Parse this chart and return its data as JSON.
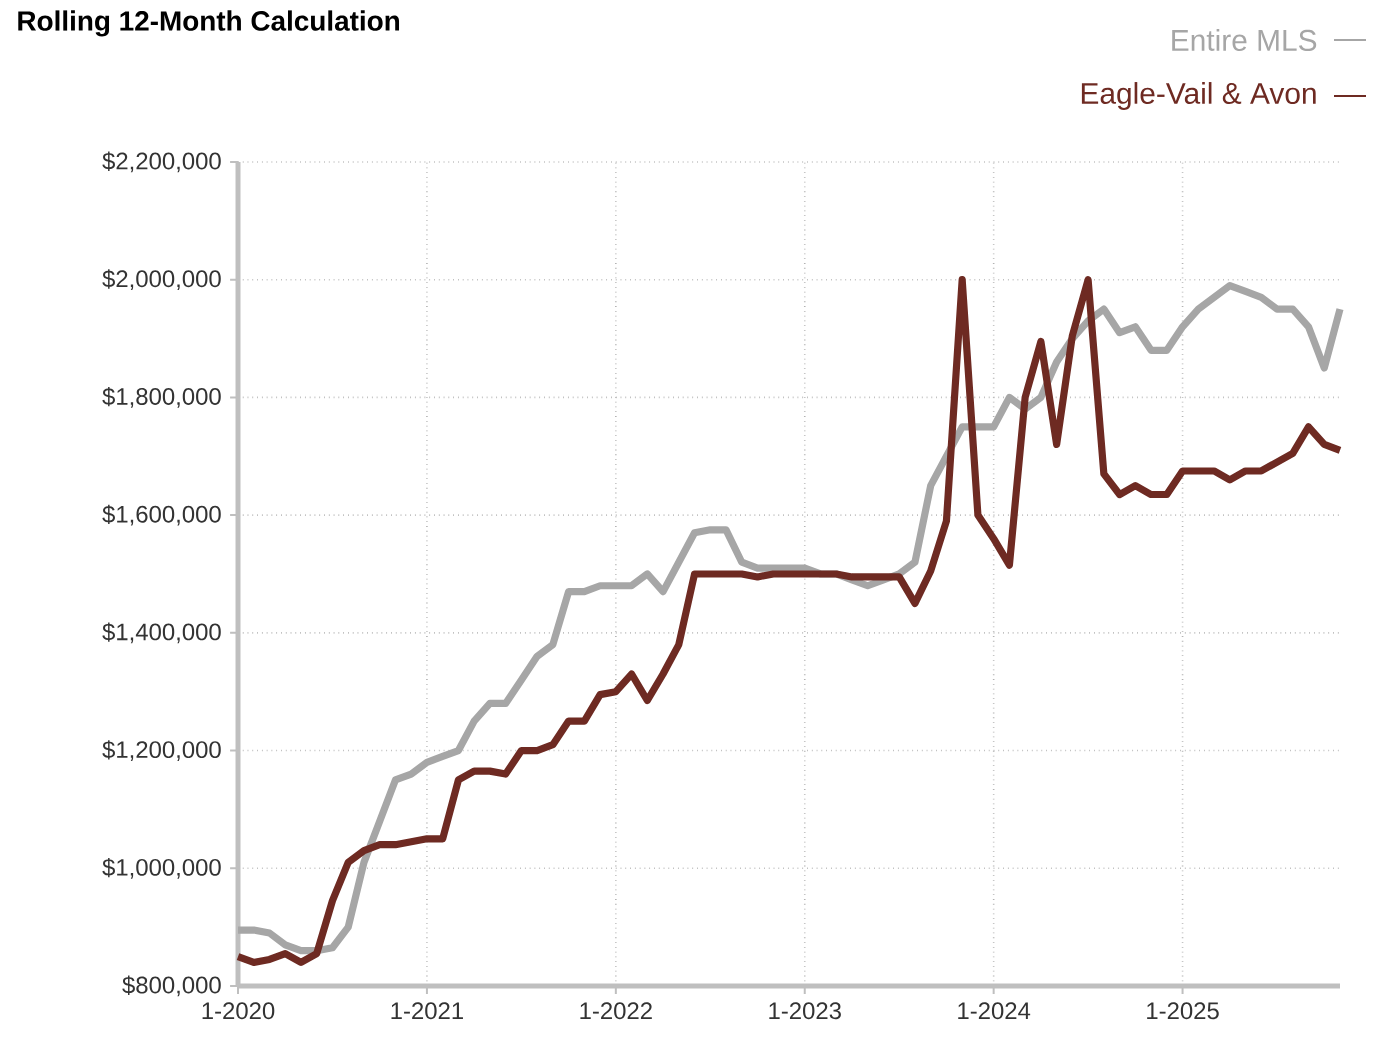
{
  "chart_data": {
    "type": "line",
    "title": "Rolling 12-Month Calculation",
    "x": [
      "2020-01",
      "2020-02",
      "2020-03",
      "2020-04",
      "2020-05",
      "2020-06",
      "2020-07",
      "2020-08",
      "2020-09",
      "2020-10",
      "2020-11",
      "2020-12",
      "2021-01",
      "2021-02",
      "2021-03",
      "2021-04",
      "2021-05",
      "2021-06",
      "2021-07",
      "2021-08",
      "2021-09",
      "2021-10",
      "2021-11",
      "2021-12",
      "2022-01",
      "2022-02",
      "2022-03",
      "2022-04",
      "2022-05",
      "2022-06",
      "2022-07",
      "2022-08",
      "2022-09",
      "2022-10",
      "2022-11",
      "2022-12",
      "2023-01",
      "2023-02",
      "2023-03",
      "2023-04",
      "2023-05",
      "2023-06",
      "2023-07",
      "2023-08",
      "2023-09",
      "2023-10",
      "2023-11",
      "2023-12",
      "2024-01",
      "2024-02",
      "2024-03",
      "2024-04",
      "2024-05",
      "2024-06",
      "2024-07",
      "2024-08",
      "2024-09",
      "2024-10",
      "2024-11",
      "2024-12",
      "2025-01",
      "2025-02",
      "2025-03",
      "2025-04",
      "2025-05",
      "2025-06",
      "2025-07",
      "2025-08",
      "2025-09",
      "2025-10",
      "2025-11"
    ],
    "series": [
      {
        "name": "Entire MLS",
        "color": "#a6a6a6",
        "values": [
          895000,
          895000,
          890000,
          870000,
          860000,
          860000,
          865000,
          900000,
          1010000,
          1080000,
          1150000,
          1160000,
          1180000,
          1190000,
          1200000,
          1250000,
          1280000,
          1280000,
          1320000,
          1360000,
          1380000,
          1470000,
          1470000,
          1480000,
          1480000,
          1480000,
          1500000,
          1470000,
          1520000,
          1570000,
          1575000,
          1575000,
          1520000,
          1510000,
          1510000,
          1510000,
          1510000,
          1500000,
          1500000,
          1490000,
          1480000,
          1490000,
          1500000,
          1520000,
          1650000,
          1700000,
          1750000,
          1750000,
          1750000,
          1800000,
          1780000,
          1800000,
          1860000,
          1900000,
          1930000,
          1950000,
          1910000,
          1920000,
          1880000,
          1880000,
          1920000,
          1950000,
          1970000,
          1990000,
          1980000,
          1970000,
          1950000,
          1950000,
          1920000,
          1850000,
          1950000
        ]
      },
      {
        "name": "Eagle-Vail & Avon",
        "color": "#6e2a22",
        "values": [
          850000,
          840000,
          845000,
          855000,
          840000,
          855000,
          945000,
          1010000,
          1030000,
          1040000,
          1040000,
          1045000,
          1050000,
          1050000,
          1150000,
          1165000,
          1165000,
          1160000,
          1200000,
          1200000,
          1210000,
          1250000,
          1250000,
          1295000,
          1300000,
          1330000,
          1285000,
          1330000,
          1380000,
          1500000,
          1500000,
          1500000,
          1500000,
          1495000,
          1500000,
          1500000,
          1500000,
          1500000,
          1500000,
          1495000,
          1495000,
          1495000,
          1495000,
          1450000,
          1505000,
          1590000,
          2000000,
          1600000,
          1560000,
          1515000,
          1800000,
          1895000,
          1720000,
          1905000,
          2000000,
          1670000,
          1635000,
          1650000,
          1635000,
          1635000,
          1675000,
          1675000,
          1675000,
          1660000,
          1675000,
          1675000,
          1690000,
          1705000,
          1750000,
          1720000,
          1710000
        ]
      }
    ],
    "xlim": [
      "2020-01",
      "2025-11"
    ],
    "xticks": [
      {
        "value": "2020-01",
        "label": "1-2020"
      },
      {
        "value": "2021-01",
        "label": "1-2021"
      },
      {
        "value": "2022-01",
        "label": "1-2022"
      },
      {
        "value": "2023-01",
        "label": "1-2023"
      },
      {
        "value": "2024-01",
        "label": "1-2024"
      },
      {
        "value": "2025-01",
        "label": "1-2025"
      }
    ],
    "ylim": [
      800000,
      2200000
    ],
    "yticks": [
      {
        "value": 800000,
        "label": "$800,000"
      },
      {
        "value": 1000000,
        "label": "$1,000,000"
      },
      {
        "value": 1200000,
        "label": "$1,200,000"
      },
      {
        "value": 1400000,
        "label": "$1,400,000"
      },
      {
        "value": 1600000,
        "label": "$1,600,000"
      },
      {
        "value": 1800000,
        "label": "$1,800,000"
      },
      {
        "value": 2000000,
        "label": "$2,000,000"
      },
      {
        "value": 2200000,
        "label": "$2,200,000"
      }
    ],
    "grid": true,
    "legend": "top right",
    "marker": "none",
    "line_style": "solid"
  }
}
